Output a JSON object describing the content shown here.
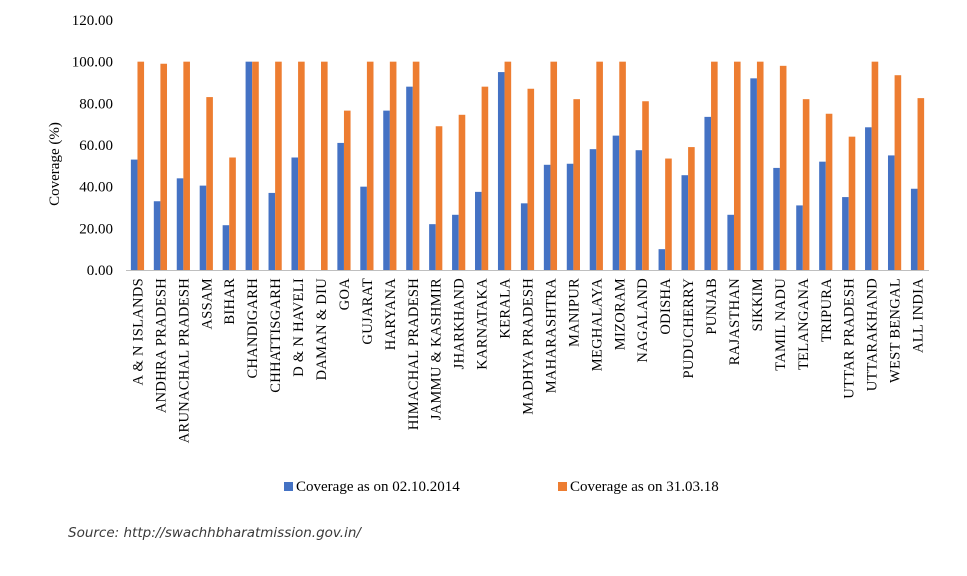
{
  "source_text": "Source: http://swachhbharatmission.gov.in/",
  "chart_data": {
    "type": "bar",
    "ylabel": "Coverage (%)",
    "xlabel": "",
    "ylim": [
      0,
      120
    ],
    "yticks": [
      "0.00",
      "20.00",
      "40.00",
      "60.00",
      "80.00",
      "100.00",
      "120.00"
    ],
    "grid": false,
    "legend_position": "bottom",
    "categories": [
      "A & N ISLANDS",
      "ANDHRA PRADESH",
      "ARUNACHAL PRADESH",
      "ASSAM",
      "BIHAR",
      "CHANDIGARH",
      "CHHATTISGARH",
      "D & N HAVELI",
      "DAMAN & DIU",
      "GOA",
      "GUJARAT",
      "HARYANA",
      "HIMACHAL PRADESH",
      "JAMMU & KASHMIR",
      "JHARKHAND",
      "KARNATAKA",
      "KERALA",
      "MADHYA PRADESH",
      "MAHARASHTRA",
      "MANIPUR",
      "MEGHALAYA",
      "MIZORAM",
      "NAGALAND",
      "ODISHA",
      "PUDUCHERRY",
      "PUNJAB",
      "RAJASTHAN",
      "SIKKIM",
      "TAMIL NADU",
      "TELANGANA",
      "TRIPURA",
      "UTTAR PRADESH",
      "UTTARAKHAND",
      "WEST BENGAL",
      "ALL INDIA"
    ],
    "series": [
      {
        "name": "Coverage as on 02.10.2014",
        "color": "#4472C4",
        "values": [
          53,
          33,
          44,
          40.5,
          21.5,
          100,
          37,
          54,
          0,
          61,
          40,
          76.5,
          88,
          22,
          26.5,
          37.5,
          95,
          32,
          50.5,
          51,
          58,
          64.5,
          57.5,
          10,
          45.5,
          73.5,
          26.5,
          92,
          49,
          31,
          52,
          35,
          68.5,
          55,
          39
        ]
      },
      {
        "name": "Coverage as on 31.03.18",
        "color": "#ED7D31",
        "values": [
          100,
          99,
          100,
          83,
          54,
          100,
          100,
          100,
          100,
          76.5,
          100,
          100,
          100,
          69,
          74.5,
          88,
          100,
          87,
          100,
          82,
          100,
          100,
          81,
          53.5,
          59,
          100,
          100,
          100,
          98,
          82,
          75,
          64,
          100,
          93.5,
          82.5
        ]
      }
    ]
  }
}
